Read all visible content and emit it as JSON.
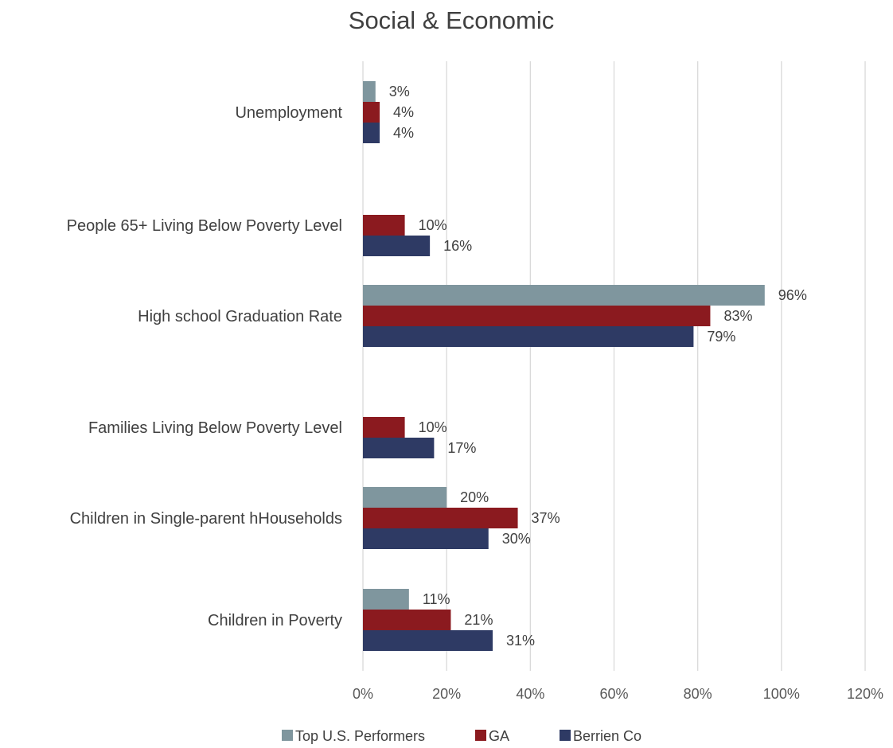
{
  "chart_data": {
    "type": "bar",
    "orientation": "horizontal",
    "title": "Social & Economic",
    "categories": [
      "Unemployment",
      "People 65+ Living Below Poverty Level",
      "High school Graduation Rate",
      "Families Living Below Poverty Level",
      "Children in Single-parent hHouseholds",
      "Children in Poverty"
    ],
    "series": [
      {
        "name": "Top U.S. Performers",
        "color": "#7f969e",
        "values": [
          3,
          null,
          96,
          null,
          20,
          11
        ],
        "labels": [
          "3%",
          "",
          "96%",
          "",
          "20%",
          "11%"
        ]
      },
      {
        "name": "GA",
        "color": "#8b1a1f",
        "values": [
          4,
          10,
          83,
          10,
          37,
          21
        ],
        "labels": [
          "4%",
          "10%",
          "83%",
          "10%",
          "37%",
          "21%"
        ]
      },
      {
        "name": "Berrien Co",
        "color": "#2e3a64",
        "values": [
          4,
          16,
          79,
          17,
          30,
          31
        ],
        "labels": [
          "4%",
          "16%",
          "79%",
          "17%",
          "30%",
          "31%"
        ]
      }
    ],
    "xlim": [
      0,
      120
    ],
    "xticks": [
      0,
      20,
      40,
      60,
      80,
      100,
      120
    ],
    "xtick_labels": [
      "0%",
      "20%",
      "40%",
      "60%",
      "80%",
      "100%",
      "120%"
    ],
    "grid": "vertical",
    "legend_position": "bottom",
    "xlabel": "",
    "ylabel": ""
  }
}
